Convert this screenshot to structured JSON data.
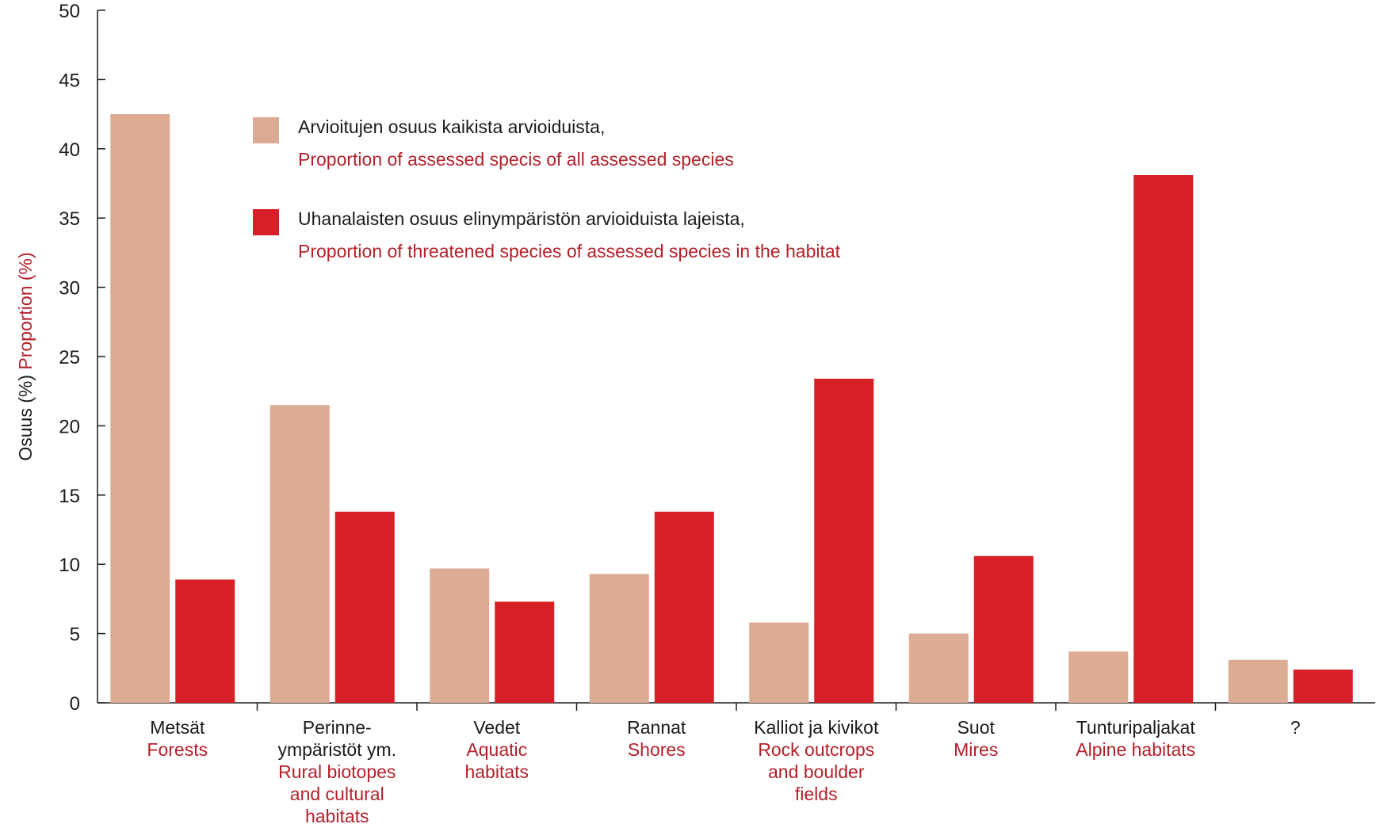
{
  "chart_data": {
    "type": "bar",
    "ylabel_fi": "Osuus (%)",
    "ylabel_en": "Proportion (%)",
    "ylim": [
      0,
      50
    ],
    "yticks": [
      0,
      5,
      10,
      15,
      20,
      25,
      30,
      35,
      40,
      45,
      50
    ],
    "grid": false,
    "legend_position": "top-center",
    "categories": [
      {
        "fi": [
          "Metsät"
        ],
        "en": [
          "Forests"
        ]
      },
      {
        "fi": [
          "Perinne-",
          "ympäristöt ym."
        ],
        "en": [
          "Rural biotopes",
          "and cultural",
          "habitats"
        ]
      },
      {
        "fi": [
          "Vedet"
        ],
        "en": [
          "Aquatic",
          "habitats"
        ]
      },
      {
        "fi": [
          "Rannat"
        ],
        "en": [
          "Shores"
        ]
      },
      {
        "fi": [
          "Kalliot ja kivikot"
        ],
        "en": [
          "Rock outcrops",
          "and boulder",
          "fields"
        ]
      },
      {
        "fi": [
          "Suot"
        ],
        "en": [
          "Mires"
        ]
      },
      {
        "fi": [
          "Tunturipaljakat"
        ],
        "en": [
          "Alpine habitats"
        ]
      },
      {
        "fi": [
          "?"
        ],
        "en": []
      }
    ],
    "series": [
      {
        "name_fi": "Arvioitujen osuus kaikista arvioiduista,",
        "name_en": "Proportion of assessed specis of all assessed species",
        "color": "#dcab94",
        "values": [
          42.5,
          21.5,
          9.7,
          9.3,
          5.8,
          5.0,
          3.7,
          3.1
        ]
      },
      {
        "name_fi": "Uhanalaisten osuus elinympäristön arvioiduista lajeista,",
        "name_en": "Proportion of threatened species of assessed species in the habitat",
        "color": "#d61f26",
        "values": [
          8.9,
          13.8,
          7.3,
          13.8,
          23.4,
          10.6,
          38.1,
          2.4
        ]
      }
    ],
    "colors": {
      "english_text": "#b5202a",
      "finnish_text": "#1a1a1a",
      "axis": "#1a1a1a"
    }
  }
}
